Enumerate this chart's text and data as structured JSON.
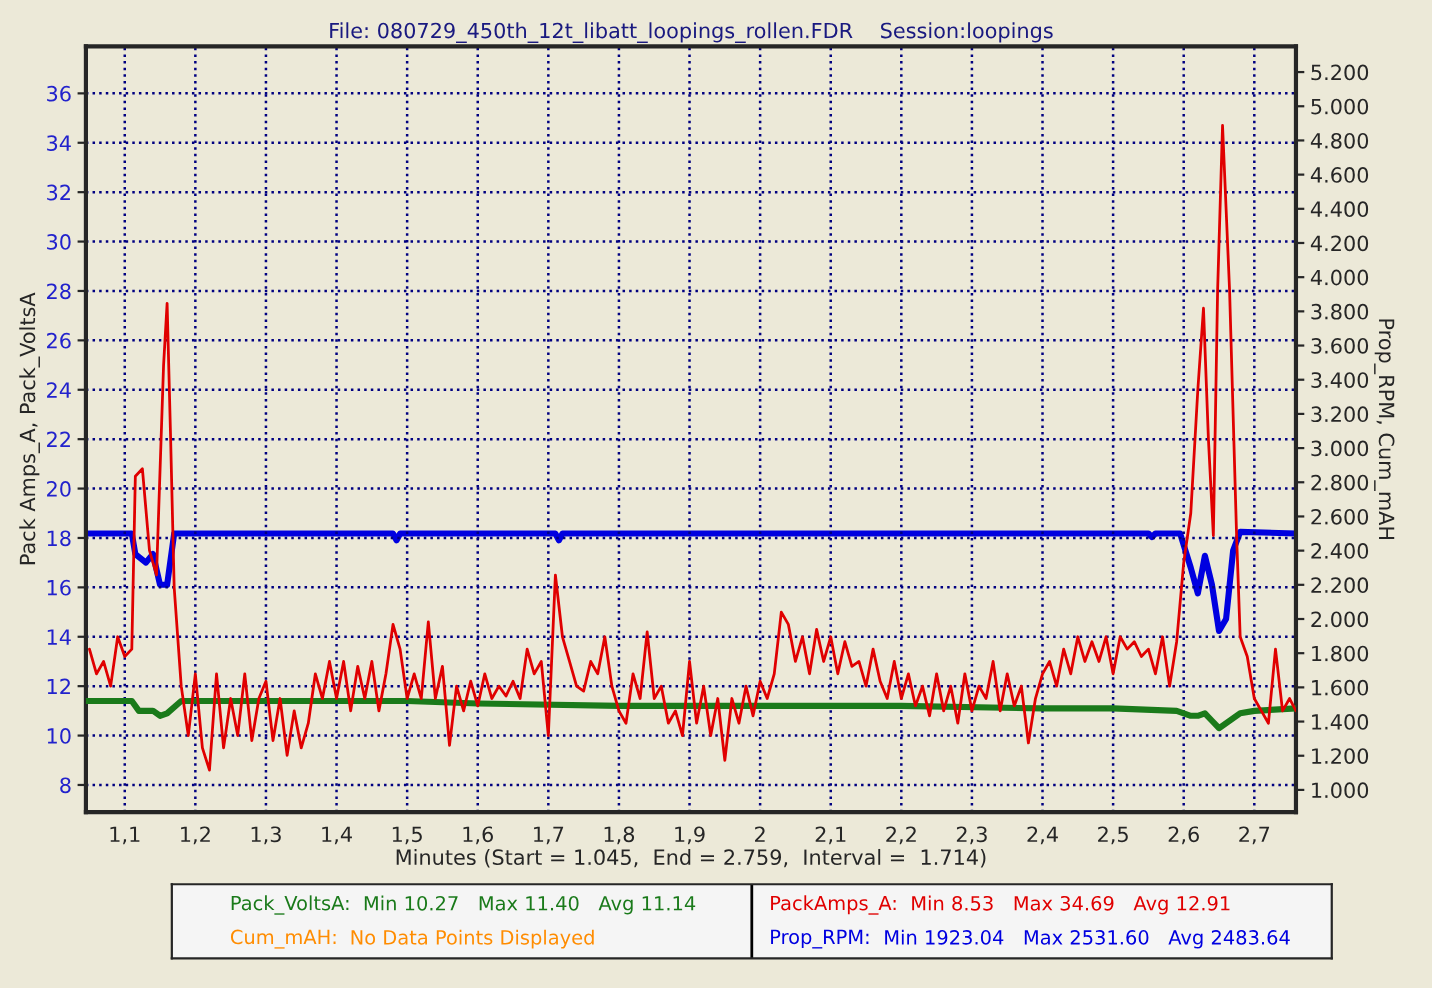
{
  "chart_data": {
    "type": "line",
    "title": "File: 080729_450th_12t_libatt_loopings_rollen.FDR    Session:loopings",
    "xlabel": "Minutes (Start = 1.045,  End = 2.759,  Interval =  1.714)",
    "ylabel": "Pack Amps_A, Pack_VoltsA",
    "y2label": "Prop_RPM, Cum_mAH",
    "xlim": [
      1.045,
      2.759
    ],
    "xticks": [
      {
        "value": 1.1,
        "label": "1,1"
      },
      {
        "value": 1.2,
        "label": "1,2"
      },
      {
        "value": 1.3,
        "label": "1,3"
      },
      {
        "value": 1.4,
        "label": "1,4"
      },
      {
        "value": 1.5,
        "label": "1,5"
      },
      {
        "value": 1.6,
        "label": "1,6"
      },
      {
        "value": 1.7,
        "label": "1,7"
      },
      {
        "value": 1.8,
        "label": "1,8"
      },
      {
        "value": 1.9,
        "label": "1,9"
      },
      2,
      {
        "value": 2.1,
        "label": "2,1"
      },
      {
        "value": 2.2,
        "label": "2,2"
      },
      {
        "value": 2.3,
        "label": "2,3"
      },
      {
        "value": 2.4,
        "label": "2,4"
      },
      {
        "value": 2.5,
        "label": "2,5"
      },
      {
        "value": 2.6,
        "label": "2,6"
      },
      {
        "value": 2.7,
        "label": "2,7"
      }
    ],
    "ylim": [
      6.9,
      37.9
    ],
    "yticks": [
      8,
      10,
      12,
      14,
      16,
      18,
      20,
      22,
      24,
      26,
      28,
      30,
      32,
      34,
      36
    ],
    "y2lim": [
      870,
      5350
    ],
    "y2ticks": [
      {
        "value": 1000,
        "label": "1.000"
      },
      {
        "value": 1200,
        "label": "1.200"
      },
      {
        "value": 1400,
        "label": "1.400"
      },
      {
        "value": 1600,
        "label": "1.600"
      },
      {
        "value": 1800,
        "label": "1.800"
      },
      {
        "value": 2000,
        "label": "2.000"
      },
      {
        "value": 2200,
        "label": "2.200"
      },
      {
        "value": 2400,
        "label": "2.400"
      },
      {
        "value": 2600,
        "label": "2.600"
      },
      {
        "value": 2800,
        "label": "2.800"
      },
      {
        "value": 3000,
        "label": "3.000"
      },
      {
        "value": 3200,
        "label": "3.200"
      },
      {
        "value": 3400,
        "label": "3.400"
      },
      {
        "value": 3600,
        "label": "3.600"
      },
      {
        "value": 3800,
        "label": "3.800"
      },
      {
        "value": 4000,
        "label": "4.000"
      },
      {
        "value": 4200,
        "label": "4.200"
      },
      {
        "value": 4400,
        "label": "4.400"
      },
      {
        "value": 4600,
        "label": "4.600"
      },
      {
        "value": 4800,
        "label": "4.800"
      },
      {
        "value": 5000,
        "label": "5.000"
      },
      {
        "value": 5200,
        "label": "5.200"
      }
    ],
    "grid": true,
    "series": [
      {
        "name": "Pack_VoltsA:",
        "color": "#1a7a1a",
        "x": [
          1.045,
          1.11,
          1.12,
          1.14,
          1.15,
          1.16,
          1.18,
          1.3,
          1.5,
          1.6,
          1.8,
          2.0,
          2.2,
          2.4,
          2.5,
          2.59,
          2.61,
          2.62,
          2.63,
          2.64,
          2.65,
          2.66,
          2.68,
          2.7,
          2.759
        ],
        "values": [
          11.4,
          11.4,
          11.0,
          11.0,
          10.8,
          10.9,
          11.4,
          11.4,
          11.4,
          11.3,
          11.2,
          11.2,
          11.2,
          11.1,
          11.1,
          11.0,
          10.8,
          10.8,
          10.9,
          10.6,
          10.3,
          10.5,
          10.9,
          11.0,
          11.1
        ]
      },
      {
        "name": "Cum_mAH:",
        "color": "#ff8c00",
        "axis": "y2"
      },
      {
        "name": "PackAmps_A:",
        "color": "#e00000",
        "x": [
          1.05,
          1.06,
          1.07,
          1.08,
          1.09,
          1.1,
          1.11,
          1.115,
          1.125,
          1.135,
          1.145,
          1.155,
          1.16,
          1.165,
          1.17,
          1.18,
          1.19,
          1.2,
          1.21,
          1.22,
          1.23,
          1.24,
          1.25,
          1.26,
          1.27,
          1.28,
          1.29,
          1.3,
          1.31,
          1.32,
          1.33,
          1.34,
          1.35,
          1.36,
          1.37,
          1.38,
          1.39,
          1.4,
          1.41,
          1.42,
          1.43,
          1.44,
          1.45,
          1.46,
          1.47,
          1.48,
          1.49,
          1.5,
          1.51,
          1.52,
          1.53,
          1.54,
          1.55,
          1.56,
          1.57,
          1.58,
          1.59,
          1.6,
          1.61,
          1.62,
          1.63,
          1.64,
          1.65,
          1.66,
          1.67,
          1.68,
          1.69,
          1.7,
          1.71,
          1.72,
          1.73,
          1.74,
          1.75,
          1.76,
          1.77,
          1.78,
          1.79,
          1.8,
          1.81,
          1.82,
          1.83,
          1.84,
          1.85,
          1.86,
          1.87,
          1.88,
          1.89,
          1.9,
          1.91,
          1.92,
          1.93,
          1.94,
          1.95,
          1.96,
          1.97,
          1.98,
          1.99,
          2.0,
          2.01,
          2.02,
          2.03,
          2.04,
          2.05,
          2.06,
          2.07,
          2.08,
          2.09,
          2.1,
          2.11,
          2.12,
          2.13,
          2.14,
          2.15,
          2.16,
          2.17,
          2.18,
          2.19,
          2.2,
          2.21,
          2.22,
          2.23,
          2.24,
          2.25,
          2.26,
          2.27,
          2.28,
          2.29,
          2.3,
          2.31,
          2.32,
          2.33,
          2.34,
          2.35,
          2.36,
          2.37,
          2.38,
          2.39,
          2.4,
          2.41,
          2.42,
          2.43,
          2.44,
          2.45,
          2.46,
          2.47,
          2.48,
          2.49,
          2.5,
          2.51,
          2.52,
          2.53,
          2.54,
          2.55,
          2.56,
          2.57,
          2.58,
          2.59,
          2.6,
          2.61,
          2.62,
          2.628,
          2.635,
          2.642,
          2.648,
          2.655,
          2.665,
          2.675,
          2.68,
          2.69,
          2.7,
          2.71,
          2.72,
          2.73,
          2.74,
          2.75,
          2.759
        ],
        "values": [
          13.5,
          12.5,
          13,
          12,
          14,
          13.2,
          13.5,
          20.5,
          20.8,
          17.5,
          16.5,
          25,
          27.5,
          22,
          16,
          12,
          10,
          12.5,
          9.5,
          8.6,
          12.5,
          9.5,
          11.5,
          10,
          12.5,
          9.8,
          11.5,
          12.2,
          9.8,
          11.5,
          9.2,
          11,
          9.5,
          10.5,
          12.5,
          11.5,
          13,
          11.5,
          13,
          11,
          12.8,
          11.5,
          13,
          11,
          12.5,
          14.5,
          13.5,
          11.5,
          12.5,
          11.5,
          14.6,
          11.5,
          12.8,
          9.6,
          12,
          11,
          12.2,
          11.2,
          12.5,
          11.5,
          12,
          11.6,
          12.2,
          11.5,
          13.5,
          12.5,
          13,
          10,
          16.5,
          14,
          13,
          12,
          11.8,
          13,
          12.5,
          14,
          12,
          11,
          10.5,
          12.5,
          11.5,
          14.2,
          11.5,
          12,
          10.5,
          11,
          10,
          13,
          10.5,
          12,
          10,
          11.5,
          9,
          11.5,
          10.5,
          12,
          10.8,
          12.2,
          11.5,
          12.5,
          15,
          14.5,
          13,
          14,
          12.5,
          14.3,
          13,
          14,
          12.5,
          13.8,
          12.8,
          13,
          12,
          13.5,
          12.2,
          11.5,
          13,
          11.5,
          12.5,
          11.2,
          12,
          10.8,
          12.5,
          11,
          12,
          10.5,
          12.5,
          11,
          12,
          11.5,
          13,
          11,
          12.5,
          11.2,
          12,
          9.7,
          11.5,
          12.5,
          13,
          12,
          13.5,
          12.5,
          14,
          13,
          13.8,
          13,
          14,
          12.5,
          14,
          13.5,
          13.8,
          13.2,
          13.5,
          12.5,
          14,
          12,
          13.8,
          17,
          19,
          24,
          27.3,
          22,
          18.1,
          28,
          34.7,
          28,
          18,
          14,
          13.2,
          11.5,
          11,
          10.5,
          13.5,
          11,
          11.5,
          11
        ]
      },
      {
        "name": "Prop_RPM:",
        "color": "#0000e0",
        "axis": "y2",
        "x": [
          1.045,
          1.11,
          1.115,
          1.13,
          1.14,
          1.15,
          1.16,
          1.17,
          1.48,
          1.485,
          1.49,
          1.71,
          1.715,
          1.72,
          2.55,
          2.555,
          2.56,
          2.595,
          2.61,
          2.62,
          2.63,
          2.64,
          2.65,
          2.66,
          2.67,
          2.68,
          2.759
        ],
        "values": [
          2500,
          2500,
          2380,
          2330,
          2380,
          2200,
          2200,
          2500,
          2500,
          2460,
          2500,
          2500,
          2460,
          2500,
          2500,
          2480,
          2500,
          2500,
          2300,
          2150,
          2370,
          2200,
          1930,
          2000,
          2400,
          2510,
          2500
        ]
      }
    ],
    "annotations": [
      "Min 10.27   Max 11.40   Avg 11.14",
      "No Data Points Displayed",
      "Min 8.53   Max 34.69   Avg 12.91",
      "Min 1923.04   Max 2531.60   Avg 2483.64"
    ]
  }
}
